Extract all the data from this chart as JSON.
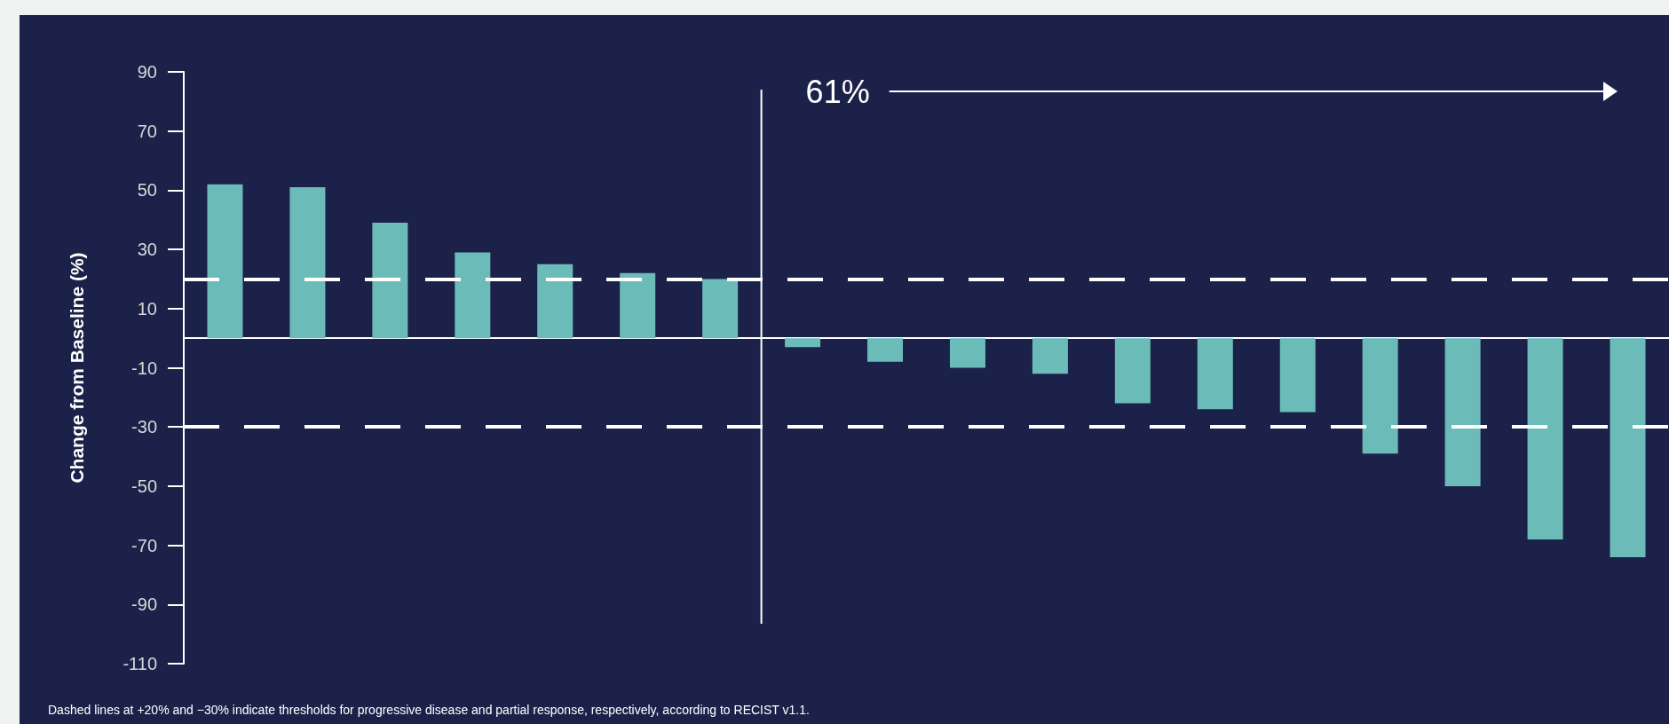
{
  "chart_data": {
    "type": "bar",
    "ylabel": "Change from Baseline (%)",
    "categories": [
      null,
      null,
      null,
      null,
      null,
      null,
      null,
      null,
      null,
      null,
      null,
      null,
      null,
      null,
      null,
      null,
      null,
      null
    ],
    "values": [
      52,
      51,
      39,
      29,
      25,
      22,
      20,
      -3,
      -8,
      -10,
      -12,
      -22,
      -24,
      -25,
      -39,
      -50,
      -68,
      -74
    ],
    "color": "#6bbcb8",
    "ylim": [
      -110,
      90
    ],
    "yticks": [
      -110,
      -90,
      -70,
      -50,
      -30,
      -10,
      10,
      30,
      50,
      70,
      90
    ],
    "ref_lines": [
      {
        "axis": "y",
        "value": 20,
        "color": "#ffffff",
        "line_style": "dashed"
      },
      {
        "axis": "y",
        "value": -30,
        "color": "#ffffff",
        "line_style": "dashed"
      }
    ],
    "annotations": [
      "61%",
      "Dashed lines at +20% and −30% indicate thresholds for progressive disease and partial response, respectively, according to RECIST v1.1."
    ],
    "grid": false,
    "tick_labels": "y"
  }
}
